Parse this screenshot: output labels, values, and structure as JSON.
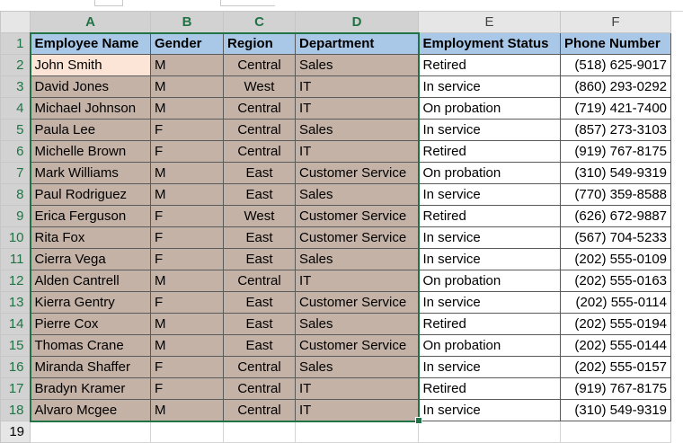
{
  "sheet": {
    "columns": [
      "A",
      "B",
      "C",
      "D",
      "E",
      "F"
    ],
    "selected_columns": [
      "A",
      "B",
      "C",
      "D"
    ],
    "row_numbers": [
      "1",
      "2",
      "3",
      "4",
      "5",
      "6",
      "7",
      "8",
      "9",
      "10",
      "11",
      "12",
      "13",
      "14",
      "15",
      "16",
      "17",
      "18",
      "19"
    ],
    "headers": [
      "Employee Name",
      "Gender",
      "Region",
      "Department",
      "Employment Status",
      "Phone Number"
    ],
    "rows": [
      [
        "John Smith",
        "M",
        "Central",
        "Sales",
        "Retired",
        "(518) 625-9017"
      ],
      [
        "David Jones",
        "M",
        "West",
        "IT",
        "In service",
        "(860) 293-0292"
      ],
      [
        "Michael Johnson",
        "M",
        "Central",
        "IT",
        "On probation",
        "(719) 421-7400"
      ],
      [
        "Paula Lee",
        "F",
        "Central",
        "Sales",
        "In service",
        "(857) 273-3103"
      ],
      [
        "Michelle Brown",
        "F",
        "Central",
        "IT",
        "Retired",
        "(919) 767-8175"
      ],
      [
        "Mark Williams",
        "M",
        "East",
        "Customer Service",
        "On probation",
        "(310) 549-9319"
      ],
      [
        "Paul Rodriguez",
        "M",
        "East",
        "Sales",
        "In service",
        "(770) 359-8588"
      ],
      [
        "Erica Ferguson",
        "F",
        "West",
        "Customer Service",
        "Retired",
        "(626) 672-9887"
      ],
      [
        "Rita Fox",
        "F",
        "East",
        "Customer Service",
        "In service",
        "(567) 704-5233"
      ],
      [
        "Cierra Vega",
        "F",
        "East",
        "Sales",
        "In service",
        "(202) 555-0109"
      ],
      [
        "Alden Cantrell",
        "M",
        "Central",
        "IT",
        "On probation",
        "(202) 555-0163"
      ],
      [
        "Kierra Gentry",
        "F",
        "East",
        "Customer Service",
        "In service",
        "(202) 555-0114"
      ],
      [
        "Pierre Cox",
        "M",
        "East",
        "Sales",
        "Retired",
        "(202) 555-0194"
      ],
      [
        "Thomas Crane",
        "M",
        "East",
        "Customer Service",
        "On probation",
        "(202) 555-0144"
      ],
      [
        "Miranda Shaffer",
        "F",
        "Central",
        "Sales",
        "In service",
        "(202) 555-0157"
      ],
      [
        "Bradyn Kramer",
        "F",
        "Central",
        "IT",
        "Retired",
        "(919) 767-8175"
      ],
      [
        "Alvaro Mcgee",
        "M",
        "Central",
        "IT",
        "In service",
        "(310) 549-9319"
      ]
    ],
    "colors": {
      "header_fill": "#a9c8e8",
      "selection_fill": "#c4b2a6",
      "active_cell_fill": "#fce4d6",
      "selection_border": "#217346"
    }
  }
}
